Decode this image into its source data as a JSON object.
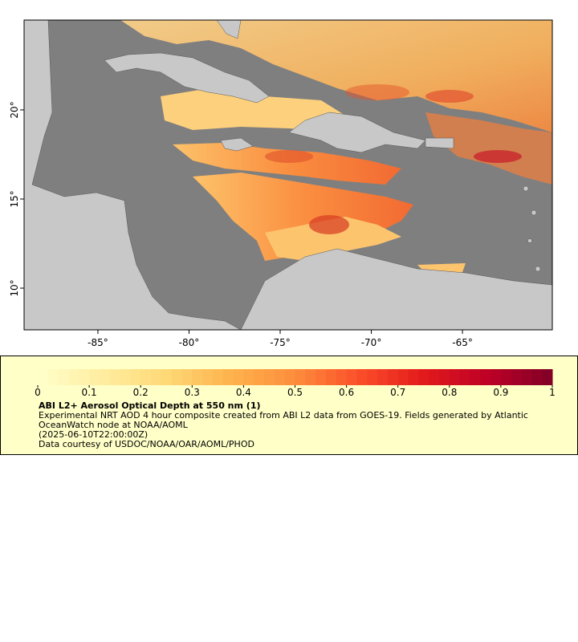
{
  "chart_data": {
    "type": "map",
    "xlim": [
      -89.05,
      -60.07
    ],
    "ylim": [
      7.66,
      25.04
    ],
    "xticks": [
      {
        "value": -85,
        "label": "-85°"
      },
      {
        "value": -80,
        "label": "-80°"
      },
      {
        "value": -75,
        "label": "-75°"
      },
      {
        "value": -70,
        "label": "-70°"
      },
      {
        "value": -65,
        "label": "-65°"
      }
    ],
    "yticks": [
      {
        "value": 10,
        "label": "10°"
      },
      {
        "value": 15,
        "label": "15°"
      },
      {
        "value": 20,
        "label": "20°"
      }
    ],
    "colorbar": {
      "lim": [
        0,
        1
      ],
      "ticks": [
        0,
        0.1,
        0.2,
        0.3,
        0.4,
        0.5,
        0.6,
        0.7,
        0.8,
        0.9,
        1
      ],
      "colors": [
        "#ffffcc",
        "#ffeda0",
        "#fed976",
        "#feb24c",
        "#fd8d3c",
        "#fc4e2a",
        "#e31a1c",
        "#bd0026",
        "#800026"
      ]
    },
    "title": "ABI L2+ Aerosol Optical Depth at 550 nm (1)",
    "description": "Experimental NRT AOD 4 hour composite created from ABI L2 data from GOES-19. Fields generated by Atlantic OceanWatch node at NOAA/AOML",
    "timestamp": "(2025-06-10T22:00:00Z)",
    "credit": "Data courtesy of USDOC/NOAA/OAR/AOML/PHOD"
  }
}
